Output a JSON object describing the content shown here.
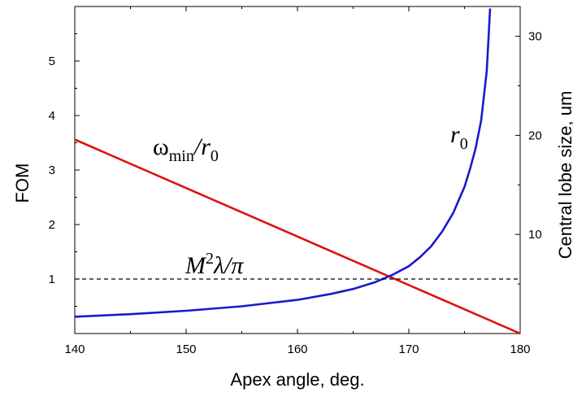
{
  "chart_data": {
    "type": "line",
    "title": "",
    "xlabel": "Apex angle, deg.",
    "ylabel": "FOM",
    "y2label": "Central lobe size, um",
    "xlim": [
      140,
      180
    ],
    "ylim": [
      0,
      6
    ],
    "y2lim": [
      0,
      33
    ],
    "x_ticks": [
      "140",
      "150",
      "160",
      "170",
      "180"
    ],
    "y_ticks": [
      "1",
      "2",
      "3",
      "4",
      "5"
    ],
    "y2_ticks": [
      "10",
      "20",
      "30"
    ],
    "grid": false,
    "series": [
      {
        "color": "#dd1111",
        "axis": "left",
        "x": [
          140,
          180
        ],
        "y": [
          3.56,
          0.0
        ]
      },
      {
        "color": "#1a1acc",
        "axis": "right",
        "x": [
          140,
          145,
          150,
          155,
          160,
          163,
          165,
          167,
          168.5,
          170,
          171,
          172,
          173,
          174,
          175,
          175.5,
          176,
          176.5,
          177,
          177.3
        ],
        "y": [
          1.7,
          1.95,
          2.3,
          2.75,
          3.4,
          4.0,
          4.5,
          5.2,
          5.9,
          6.8,
          7.7,
          8.8,
          10.3,
          12.2,
          14.8,
          16.6,
          18.7,
          21.5,
          26.5,
          32.8
        ]
      },
      {
        "color": "#000000",
        "axis": "left",
        "dash": true,
        "x": [
          140,
          180
        ],
        "y": [
          1,
          1
        ]
      }
    ],
    "annotations": {
      "omega": "ω",
      "omega_sub": "min",
      "omega_rest": "/r",
      "omega_zero": "0",
      "r": "r",
      "r_sub": "0",
      "m": "M",
      "m_sup": "2",
      "m_rest": "λ/π"
    }
  }
}
